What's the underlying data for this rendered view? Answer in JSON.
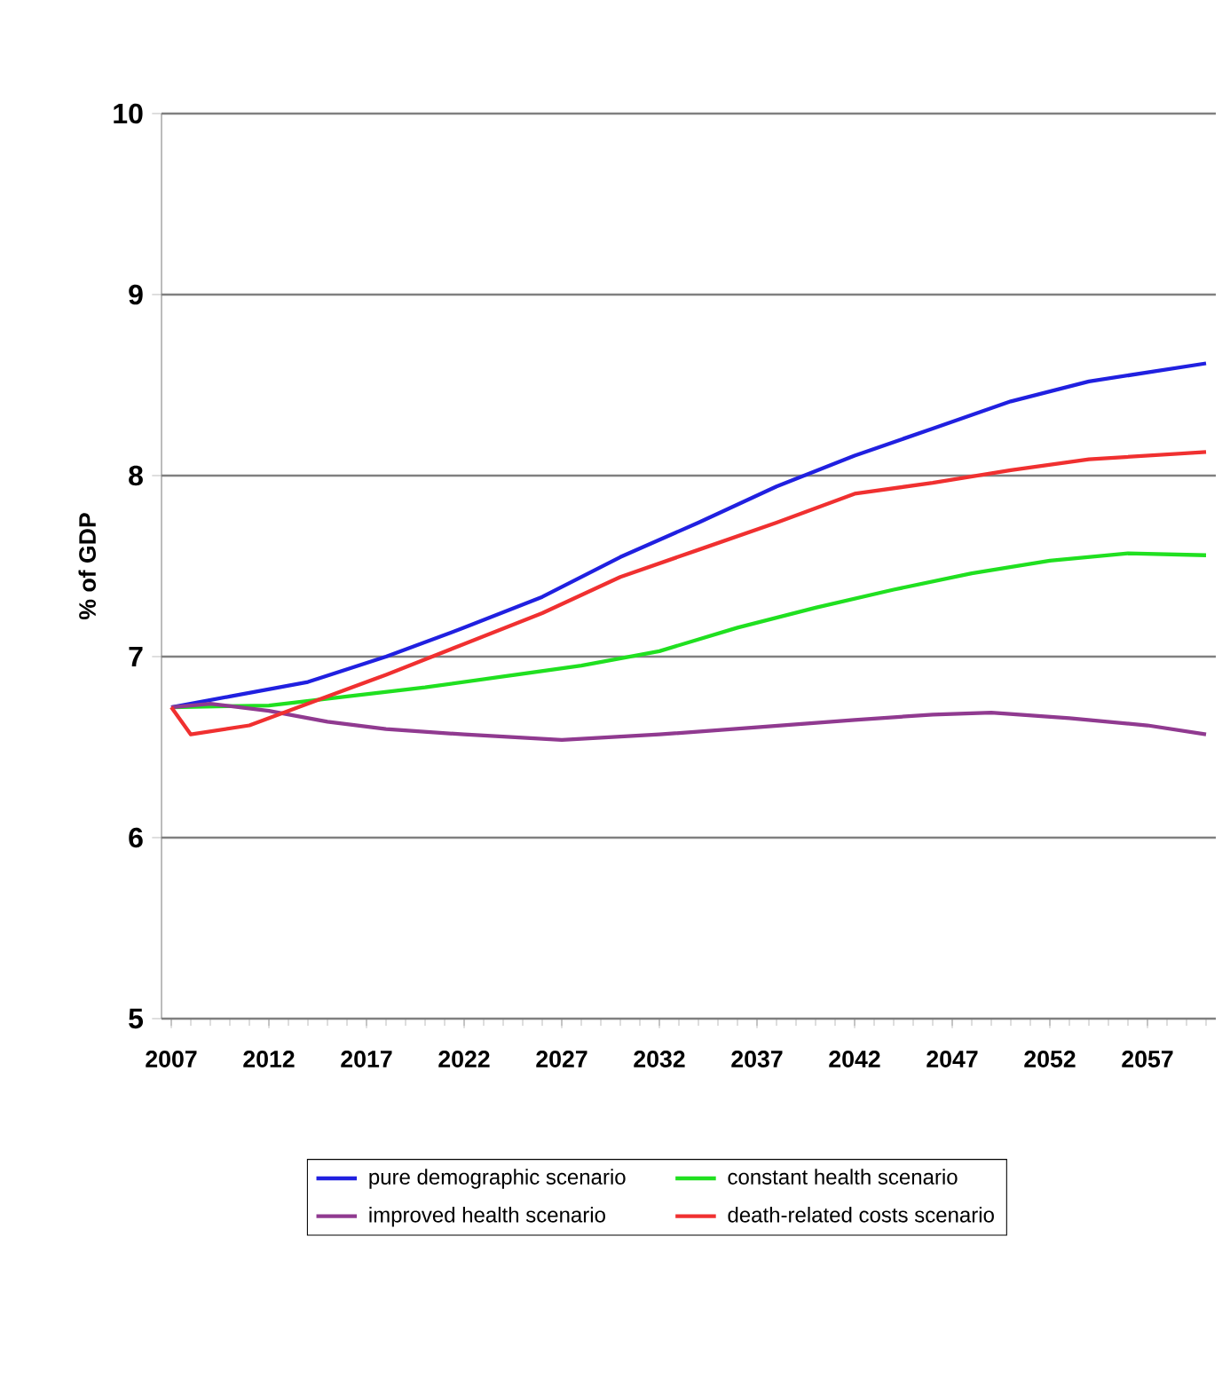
{
  "chart_data": {
    "type": "line",
    "ylabel": "% of GDP",
    "xlim": [
      2006.5,
      2060.5
    ],
    "xticks": [
      2007,
      2012,
      2017,
      2022,
      2027,
      2032,
      2037,
      2042,
      2047,
      2052,
      2057
    ],
    "ylim": [
      5,
      10
    ],
    "yticks": [
      5,
      6,
      7,
      8,
      9,
      10
    ],
    "grid": "y",
    "legend": "bottom",
    "marker": "none",
    "line_style": "solid",
    "series": [
      {
        "name": "pure demographic scenario",
        "color": "#2020e0",
        "x": [
          2007,
          2010,
          2014,
          2018,
          2022,
          2026,
          2030,
          2034,
          2038,
          2042,
          2046,
          2050,
          2054,
          2060
        ],
        "values": [
          6.72,
          6.78,
          6.86,
          7.0,
          7.16,
          7.33,
          7.55,
          7.74,
          7.94,
          8.11,
          8.26,
          8.41,
          8.52,
          8.62
        ]
      },
      {
        "name": "constant health scenario",
        "color": "#20e020",
        "x": [
          2007,
          2012,
          2016,
          2020,
          2024,
          2028,
          2032,
          2036,
          2040,
          2044,
          2048,
          2052,
          2056,
          2060
        ],
        "values": [
          6.72,
          6.73,
          6.78,
          6.83,
          6.89,
          6.95,
          7.03,
          7.16,
          7.27,
          7.37,
          7.46,
          7.53,
          7.57,
          7.56
        ]
      },
      {
        "name": "improved health scenario",
        "color": "#903a90",
        "x": [
          2007,
          2009,
          2012,
          2015,
          2018,
          2022,
          2027,
          2032,
          2037,
          2042,
          2046,
          2049,
          2053,
          2057,
          2060
        ],
        "values": [
          6.72,
          6.74,
          6.7,
          6.64,
          6.6,
          6.57,
          6.54,
          6.57,
          6.61,
          6.65,
          6.68,
          6.69,
          6.66,
          6.62,
          6.57
        ]
      },
      {
        "name": "death-related costs scenario",
        "color": "#f03030",
        "x": [
          2007,
          2008,
          2011,
          2014,
          2018,
          2022,
          2026,
          2030,
          2034,
          2038,
          2042,
          2046,
          2050,
          2054,
          2060
        ],
        "values": [
          6.72,
          6.57,
          6.62,
          6.74,
          6.9,
          7.07,
          7.24,
          7.44,
          7.59,
          7.74,
          7.9,
          7.96,
          8.03,
          8.09,
          8.13
        ]
      }
    ]
  }
}
